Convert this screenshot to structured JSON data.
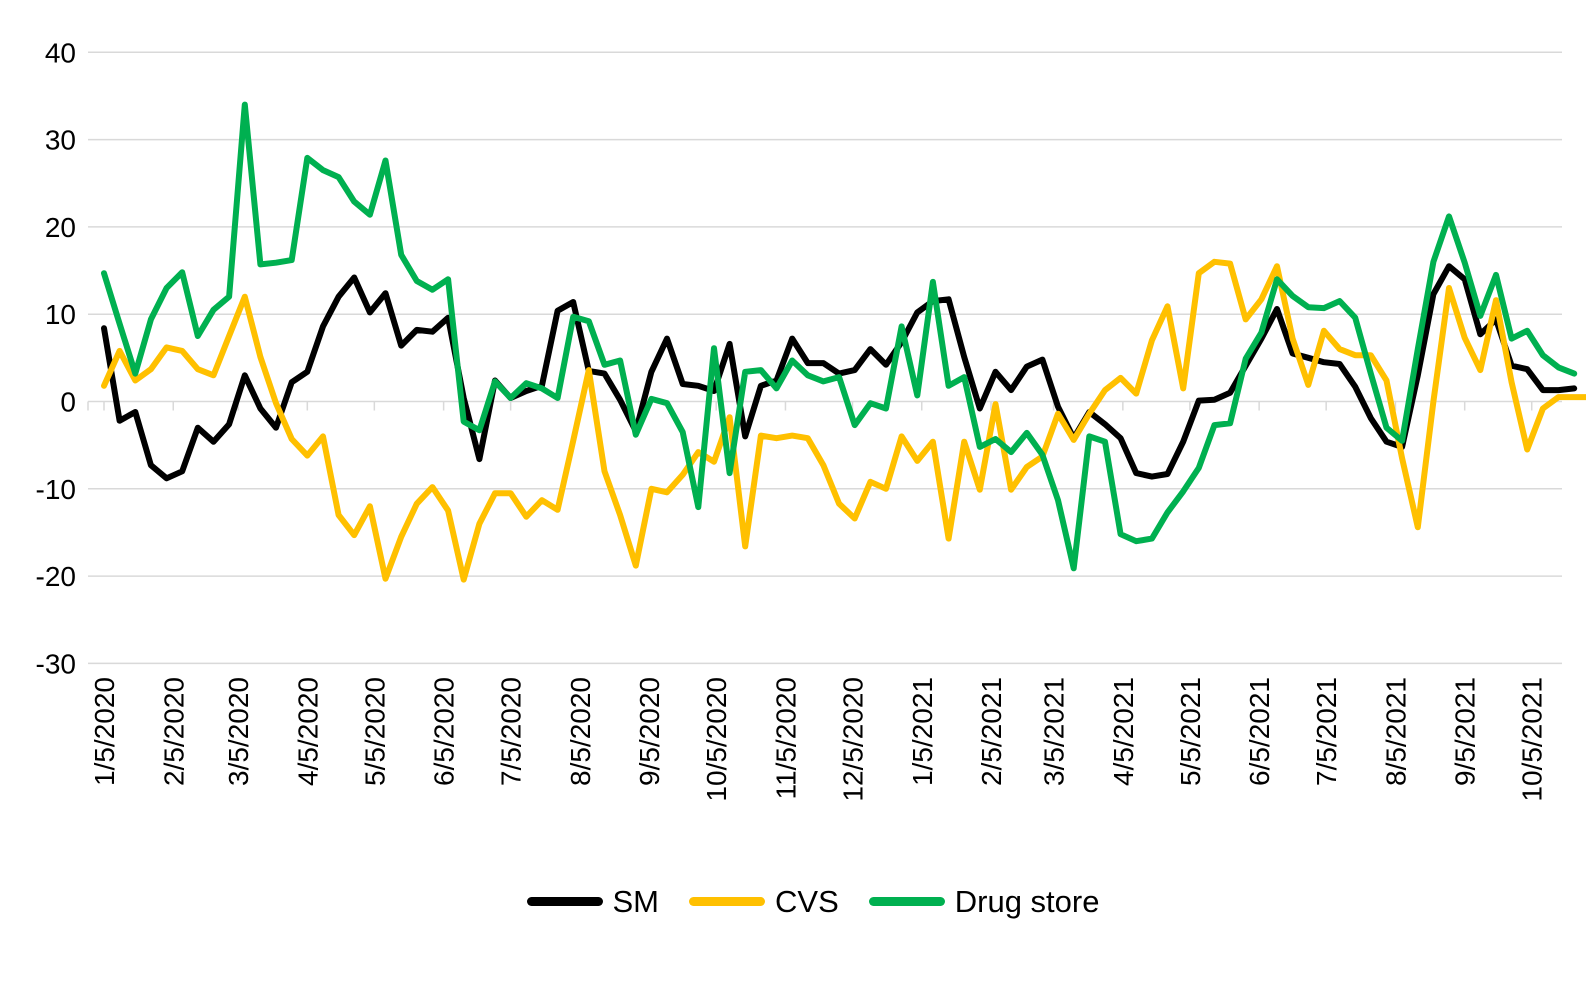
{
  "chart_data": {
    "type": "line",
    "title": "",
    "x_start_date": "1/5/2020",
    "x_interval_days": 7,
    "x_tick_labels": [
      "1/5/2020",
      "2/5/2020",
      "3/5/2020",
      "4/5/2020",
      "5/5/2020",
      "6/5/2020",
      "7/5/2020",
      "8/5/2020",
      "9/5/2020",
      "10/5/2020",
      "11/5/2020",
      "12/5/2020",
      "1/5/2021",
      "2/5/2021",
      "3/5/2021",
      "4/5/2021",
      "5/5/2021",
      "6/5/2021",
      "7/5/2021",
      "8/5/2021",
      "9/5/2021",
      "10/5/2021"
    ],
    "y_ticks": [
      40,
      30,
      20,
      10,
      0,
      -10,
      -20,
      -30
    ],
    "ylim": [
      -30,
      40
    ],
    "grid": true,
    "legend_position": "bottom",
    "gridline_color": "#d9d9d9",
    "series": [
      {
        "name": "SM",
        "color": "#000000",
        "values": [
          8.4,
          -2.2,
          -1.2,
          -7.3,
          -8.8,
          -8,
          -3,
          -4.6,
          -2.6,
          3,
          -0.8,
          -3,
          2.2,
          3.4,
          8.6,
          12,
          14.2,
          10.2,
          12.4,
          6.4,
          8.2,
          8,
          9.6,
          0.4,
          -6.6,
          2.4,
          0.4,
          1.2,
          1.8,
          10.4,
          11.4,
          3.5,
          3.2,
          0.2,
          -3.4,
          3.4,
          7.2,
          2,
          1.8,
          1.2,
          6.6,
          -4,
          1.8,
          2.4,
          7.2,
          4.4,
          4.4,
          3.2,
          3.6,
          6,
          4.2,
          6.8,
          10.2,
          11.5,
          11.7,
          5.1,
          -0.8,
          3.4,
          1.3,
          4,
          4.8,
          -0.6,
          -4.2,
          -1.2,
          -2.6,
          -4.2,
          -8.2,
          -8.6,
          -8.3,
          -4.6,
          0.1,
          0.2,
          1,
          4.1,
          7.2,
          10.6,
          5.5,
          5,
          4.5,
          4.3,
          1.7,
          -1.9,
          -4.6,
          -5.2,
          3,
          12.3,
          15.5,
          14,
          7.7,
          9.4,
          4.1,
          3.7,
          1.3,
          1.3,
          1.5
        ]
      },
      {
        "name": "CVS",
        "color": "#ffc000",
        "values": [
          1.8,
          5.8,
          2.4,
          3.7,
          6.2,
          5.8,
          3.7,
          3,
          7.5,
          12,
          5.1,
          -0.2,
          -4.3,
          -6.2,
          -4,
          -13,
          -15.3,
          -12,
          -20.3,
          -15.5,
          -11.7,
          -9.8,
          -12.5,
          -20.4,
          -14,
          -10.5,
          -10.5,
          -13.2,
          -11.3,
          -12.4,
          -4.5,
          3.6,
          -8,
          -13,
          -18.8,
          -10,
          -10.4,
          -8.4,
          -5.8,
          -6.9,
          -1.8,
          -16.6,
          -3.9,
          -4.2,
          -3.9,
          -4.2,
          -7.3,
          -11.7,
          -13.4,
          -9.2,
          -10,
          -4,
          -6.8,
          -4.6,
          -15.7,
          -4.6,
          -10.1,
          -0.3,
          -10.1,
          -7.5,
          -6.3,
          -1.4,
          -4.4,
          -1.4,
          1.3,
          2.7,
          0.9,
          7,
          10.9,
          1.5,
          14.7,
          16,
          15.8,
          9.4,
          11.7,
          15.5,
          7.2,
          1.9,
          8.1,
          6,
          5.3,
          5.3,
          2.4,
          -6.5,
          -14.4,
          0,
          13,
          7.3,
          3.6,
          11.6,
          2.2,
          -5.5,
          -0.8,
          0.5,
          0.5,
          0.5
        ]
      },
      {
        "name": "Drug store",
        "color": "#00b050",
        "values": [
          14.7,
          8.9,
          3.2,
          9.4,
          13,
          14.8,
          7.5,
          10.5,
          12,
          34,
          15.7,
          15.9,
          16.2,
          27.9,
          26.5,
          25.7,
          22.9,
          21.4,
          27.6,
          16.8,
          13.8,
          12.8,
          14,
          -2.3,
          -3.3,
          2.3,
          0.4,
          2.1,
          1.5,
          0.4,
          9.7,
          9.2,
          4.2,
          4.7,
          -3.8,
          0.3,
          -0.2,
          -3.5,
          -12.1,
          6.1,
          -8.2,
          3.4,
          3.6,
          1.5,
          4.7,
          3,
          2.3,
          2.8,
          -2.7,
          -0.2,
          -0.8,
          8.6,
          0.7,
          13.7,
          1.8,
          2.8,
          -5.2,
          -4.3,
          -5.8,
          -3.6,
          -6.1,
          -11.3,
          -19.1,
          -4,
          -4.6,
          -15.2,
          -16,
          -15.7,
          -12.7,
          -10.3,
          -7.6,
          -2.7,
          -2.5,
          4.9,
          7.9,
          14,
          12.1,
          10.8,
          10.7,
          11.5,
          9.6,
          3.2,
          -3,
          -4.5,
          6,
          16,
          21.2,
          15.9,
          9.8,
          14.5,
          7.2,
          8.1,
          5.3,
          3.9,
          3.2
        ]
      }
    ]
  },
  "legend": {
    "sm_label": "SM",
    "cvs_label": "CVS",
    "drugstore_label": "Drug store"
  }
}
